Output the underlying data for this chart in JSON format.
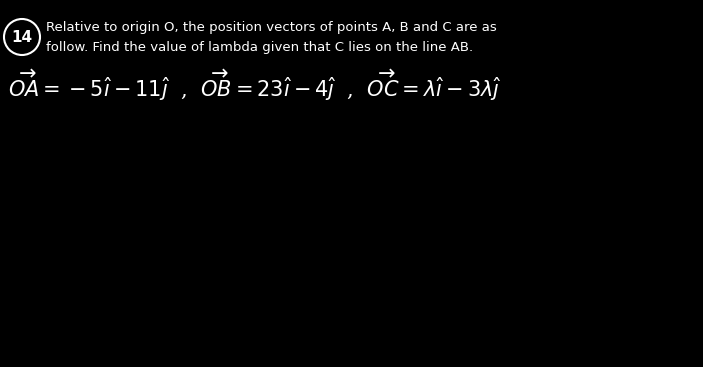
{
  "background_color": "#000000",
  "text_color": "#ffffff",
  "circle_color": "#ffffff",
  "question_number": "14",
  "title_line1": "Relative to origin O, the position vectors of points A, B and C are as",
  "title_line2": "follow. Find the value of lambda given that C lies on the line AB.",
  "formula": "$\\overrightarrow{OA} = -5\\hat{\\imath} - 11\\hat{\\jmath}$  ,  $\\overrightarrow{OB} = 23\\hat{\\imath} - 4\\hat{\\jmath}$  ,  $\\overrightarrow{OC} = \\lambda\\hat{\\imath} - 3\\lambda\\hat{\\jmath}$",
  "figsize": [
    7.03,
    3.67
  ],
  "dpi": 100
}
